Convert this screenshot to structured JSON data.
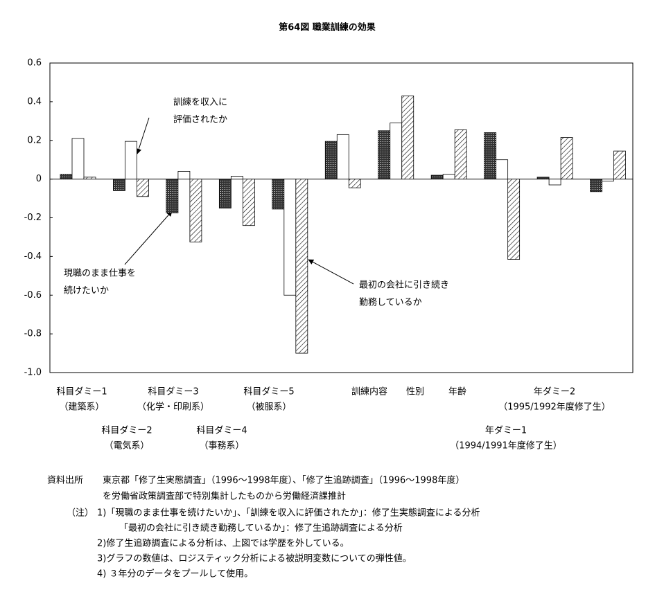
{
  "chart_data": {
    "type": "bar",
    "title": "第64図 職業訓練の効果",
    "categories": [
      "科目ダミー1",
      "科目ダミー2",
      "科目ダミー3",
      "科目ダミー4",
      "科目ダミー5",
      "訓練内容",
      "性別",
      "年齢",
      "年ダミー1",
      "年ダミー2",
      null
    ],
    "category_sublabels": [
      "（建築系）",
      "（電気系）",
      "（化学・印刷系）",
      "（事務系）",
      "（被服系）",
      null,
      null,
      null,
      "（1994/1991年度修了生）",
      "（1995/1992年度修了生）",
      null
    ],
    "series": [
      {
        "color": "#333333",
        "pattern": "crosshatch",
        "values": [
          0.025,
          -0.06,
          -0.175,
          -0.15,
          -0.155,
          0.195,
          0.25,
          0.02,
          0.24,
          0.01,
          -0.065
        ]
      },
      {
        "color": "#ffffff",
        "pattern": "none",
        "values": [
          0.21,
          0.195,
          0.04,
          0.015,
          -0.6,
          0.23,
          0.29,
          0.025,
          0.1,
          -0.03,
          -0.01
        ]
      },
      {
        "color": "#000000",
        "pattern": "diagonal",
        "values": [
          0.01,
          -0.09,
          -0.325,
          -0.24,
          -0.9,
          -0.045,
          0.43,
          0.255,
          -0.415,
          0.215,
          0.145
        ]
      }
    ],
    "ylim": [
      -1,
      0.6
    ],
    "yticks": [
      0.6,
      0.4,
      0.2,
      0,
      -0.2,
      -0.4,
      -0.6,
      -0.8,
      {
        "value": -1,
        "label": "-1.0"
      }
    ],
    "annotations": [
      {
        "lines": [
          "訓練を収入に",
          "評価されたか"
        ]
      },
      {
        "lines": [
          "現職のまま仕事を",
          "続けたいか"
        ]
      },
      {
        "lines": [
          "最初の会社に引き続き",
          "勤務しているか"
        ]
      }
    ]
  },
  "notes": {
    "source_label": "資料出所",
    "source_lines": [
      "東京都「修了生実態調査」（1996～1998年度）、「修了生追跡調査」（1996～1998年度）",
      "を労働省政策調査部で特別集計したものから労働経済課推計"
    ],
    "note_label": "（注）",
    "note_lines": [
      "1)「現職のまま仕事を続けたいか」、「訓練を収入に評価されたか」：修了生実態調査による分析",
      "「最初の会社に引き続き勤務しているか」：修了生追跡調査による分析",
      "2)修了生追跡調査による分析は、上図では学歴を外している。",
      "3)グラフの数値は、ロジスティック分析による被説明変数についての弾性値。",
      "4) ３年分のデータをプールして使用。"
    ]
  }
}
